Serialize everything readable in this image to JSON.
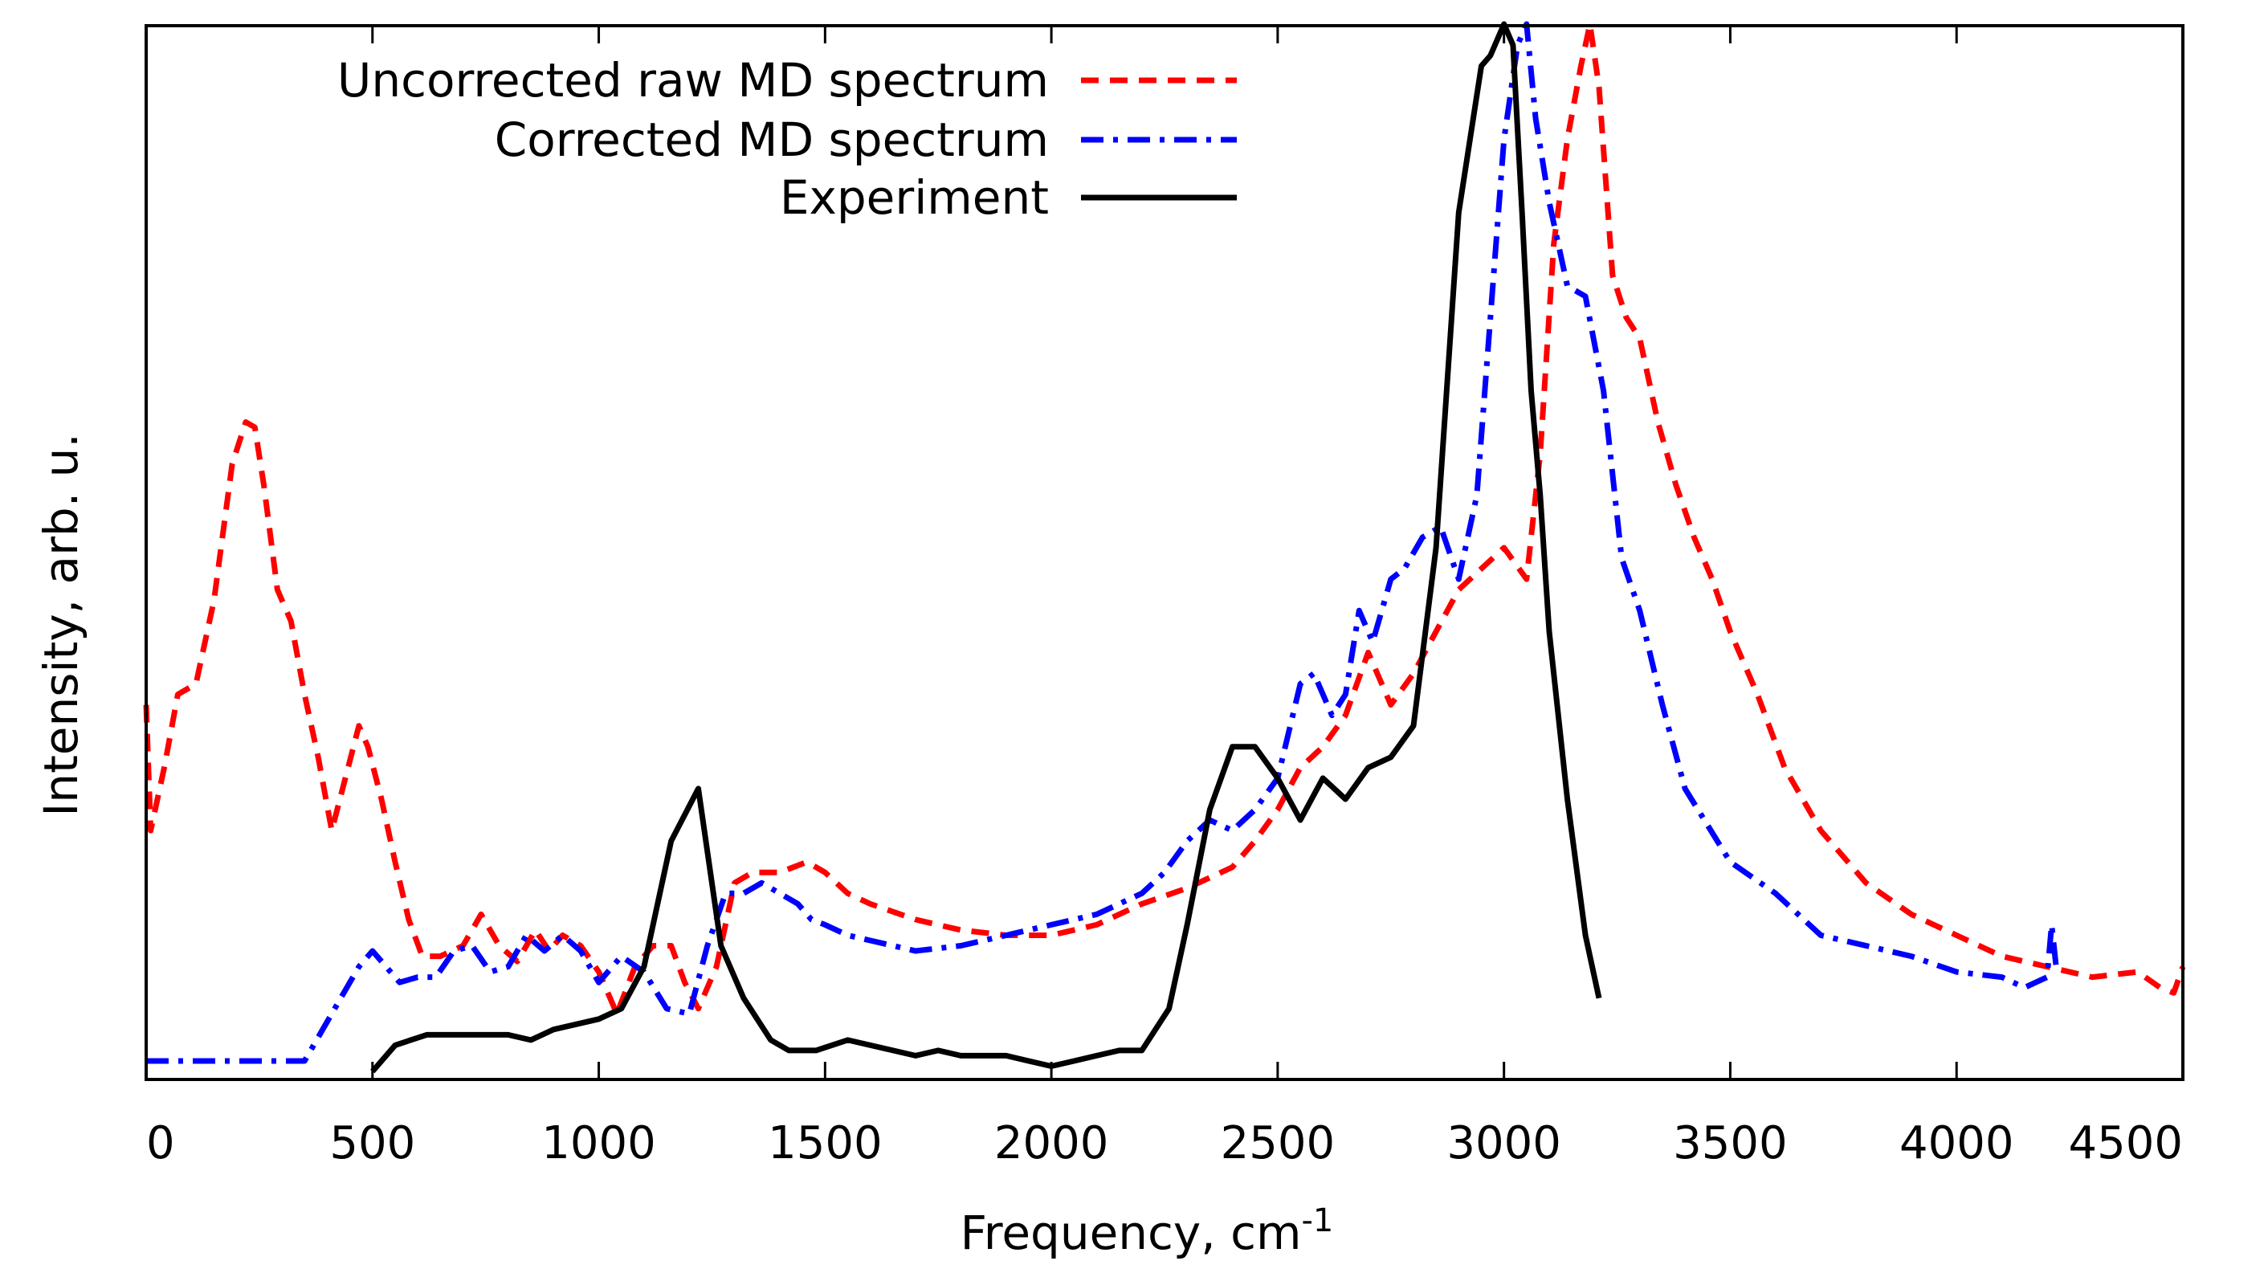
{
  "chart_data": {
    "type": "line",
    "title": "",
    "xlabel": "Frequency, cm",
    "xlabel_superscript": "-1",
    "ylabel": "Intensity, arb. u.",
    "xlim": [
      0,
      4500
    ],
    "ylim": [
      0,
      1
    ],
    "xticks": [
      0,
      500,
      1000,
      1500,
      2000,
      2500,
      3000,
      3500,
      4000,
      4500
    ],
    "yticks_shown": false,
    "grid": false,
    "legend_position": "top-center",
    "series": [
      {
        "name": "Uncorrected raw MD spectrum",
        "color": "#ff0000",
        "style": "dashed",
        "x": [
          0,
          10,
          40,
          70,
          110,
          150,
          190,
          220,
          240,
          260,
          290,
          320,
          350,
          380,
          410,
          440,
          470,
          490,
          520,
          550,
          580,
          610,
          650,
          700,
          740,
          780,
          820,
          860,
          890,
          920,
          960,
          1000,
          1040,
          1080,
          1120,
          1160,
          1190,
          1220,
          1260,
          1300,
          1340,
          1400,
          1460,
          1500,
          1550,
          1600,
          1700,
          1800,
          1900,
          2000,
          2100,
          2200,
          2300,
          2400,
          2450,
          2500,
          2550,
          2600,
          2650,
          2700,
          2750,
          2800,
          2850,
          2900,
          2950,
          3000,
          3050,
          3080,
          3110,
          3140,
          3170,
          3190,
          3210,
          3240,
          3270,
          3300,
          3340,
          3380,
          3420,
          3460,
          3500,
          3560,
          3620,
          3700,
          3800,
          3900,
          4000,
          4100,
          4200,
          4300,
          4400,
          4450,
          4480,
          4500
        ],
        "y": [
          0.35,
          0.23,
          0.29,
          0.36,
          0.37,
          0.45,
          0.58,
          0.62,
          0.615,
          0.56,
          0.46,
          0.43,
          0.36,
          0.3,
          0.23,
          0.28,
          0.33,
          0.31,
          0.26,
          0.2,
          0.145,
          0.11,
          0.11,
          0.12,
          0.15,
          0.12,
          0.105,
          0.135,
          0.115,
          0.13,
          0.12,
          0.095,
          0.055,
          0.1,
          0.12,
          0.12,
          0.085,
          0.06,
          0.1,
          0.18,
          0.19,
          0.19,
          0.2,
          0.19,
          0.17,
          0.16,
          0.145,
          0.135,
          0.13,
          0.13,
          0.14,
          0.16,
          0.175,
          0.195,
          0.22,
          0.25,
          0.29,
          0.31,
          0.34,
          0.4,
          0.35,
          0.38,
          0.42,
          0.46,
          0.48,
          0.5,
          0.47,
          0.59,
          0.79,
          0.89,
          0.96,
          1.0,
          0.94,
          0.76,
          0.72,
          0.7,
          0.62,
          0.56,
          0.51,
          0.47,
          0.42,
          0.36,
          0.29,
          0.23,
          0.18,
          0.15,
          0.13,
          0.11,
          0.1,
          0.09,
          0.095,
          0.08,
          0.075,
          0.1
        ]
      },
      {
        "name": "Corrected MD spectrum",
        "color": "#0000ff",
        "style": "dash-dot",
        "x": [
          0,
          350,
          390,
          430,
          470,
          500,
          530,
          560,
          600,
          640,
          680,
          720,
          760,
          800,
          840,
          880,
          920,
          960,
          1000,
          1050,
          1100,
          1150,
          1200,
          1240,
          1280,
          1320,
          1360,
          1400,
          1440,
          1470,
          1500,
          1550,
          1600,
          1700,
          1800,
          1900,
          2000,
          2100,
          2200,
          2250,
          2300,
          2350,
          2400,
          2450,
          2500,
          2550,
          2580,
          2620,
          2650,
          2680,
          2710,
          2750,
          2780,
          2820,
          2860,
          2900,
          2940,
          2970,
          3000,
          3030,
          3050,
          3070,
          3100,
          3140,
          3180,
          3220,
          3260,
          3300,
          3350,
          3400,
          3500,
          3600,
          3700,
          3800,
          3900,
          4000,
          4100,
          4150,
          4200,
          4210,
          4220
        ],
        "y": [
          0.01,
          0.01,
          0.04,
          0.07,
          0.1,
          0.115,
          0.1,
          0.085,
          0.09,
          0.09,
          0.115,
          0.12,
          0.095,
          0.1,
          0.13,
          0.115,
          0.13,
          0.115,
          0.085,
          0.11,
          0.095,
          0.06,
          0.055,
          0.12,
          0.17,
          0.17,
          0.18,
          0.17,
          0.16,
          0.145,
          0.14,
          0.13,
          0.125,
          0.115,
          0.12,
          0.13,
          0.14,
          0.15,
          0.17,
          0.19,
          0.22,
          0.24,
          0.23,
          0.25,
          0.28,
          0.37,
          0.38,
          0.34,
          0.36,
          0.44,
          0.41,
          0.47,
          0.48,
          0.51,
          0.52,
          0.47,
          0.55,
          0.72,
          0.89,
          0.98,
          1.0,
          0.91,
          0.83,
          0.75,
          0.74,
          0.65,
          0.49,
          0.44,
          0.35,
          0.27,
          0.2,
          0.17,
          0.13,
          0.12,
          0.11,
          0.095,
          0.09,
          0.08,
          0.09,
          0.14,
          0.1
        ]
      },
      {
        "name": "Experiment",
        "color": "#000000",
        "style": "solid",
        "x": [
          500,
          550,
          620,
          700,
          800,
          850,
          900,
          950,
          1000,
          1050,
          1100,
          1160,
          1220,
          1270,
          1320,
          1380,
          1420,
          1480,
          1550,
          1600,
          1650,
          1700,
          1750,
          1800,
          1850,
          1900,
          1950,
          2000,
          2050,
          2100,
          2150,
          2200,
          2260,
          2300,
          2350,
          2400,
          2450,
          2500,
          2550,
          2600,
          2650,
          2700,
          2750,
          2800,
          2850,
          2900,
          2950,
          2970,
          3000,
          3020,
          3040,
          3060,
          3080,
          3100,
          3140,
          3180,
          3210
        ],
        "y": [
          0.0,
          0.025,
          0.035,
          0.035,
          0.035,
          0.03,
          0.04,
          0.045,
          0.05,
          0.06,
          0.1,
          0.22,
          0.27,
          0.12,
          0.07,
          0.03,
          0.02,
          0.02,
          0.03,
          0.025,
          0.02,
          0.015,
          0.02,
          0.015,
          0.015,
          0.015,
          0.01,
          0.005,
          0.01,
          0.015,
          0.02,
          0.02,
          0.06,
          0.14,
          0.25,
          0.31,
          0.31,
          0.28,
          0.24,
          0.28,
          0.26,
          0.29,
          0.3,
          0.33,
          0.5,
          0.82,
          0.96,
          0.97,
          1.0,
          0.98,
          0.82,
          0.65,
          0.55,
          0.42,
          0.26,
          0.13,
          0.07
        ]
      }
    ]
  }
}
